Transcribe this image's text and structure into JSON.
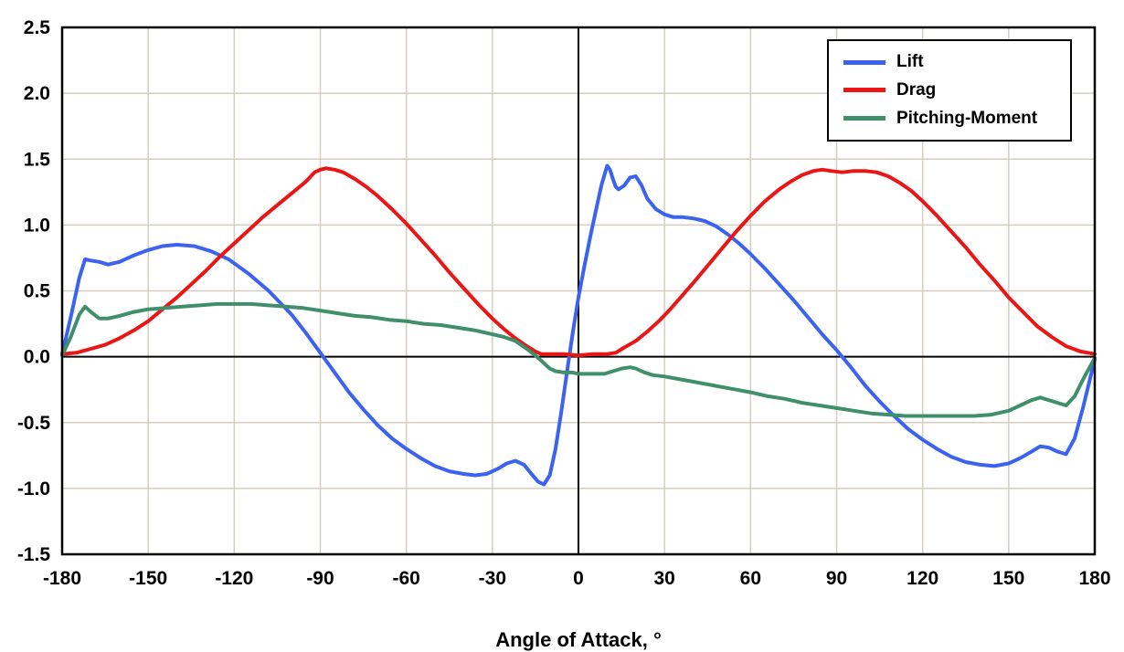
{
  "chart_data": {
    "type": "line",
    "title": "",
    "xlabel": "Angle of Attack, °",
    "ylabel": "",
    "xlim": [
      -180,
      180
    ],
    "ylim": [
      -1.5,
      2.5
    ],
    "xtick_step": 30,
    "ytick_step": 0.5,
    "grid": true,
    "legend_position": "top-right",
    "x_tick_labels": [
      "-180",
      "-150",
      "-120",
      "-90",
      "-60",
      "-30",
      "0",
      "30",
      "60",
      "90",
      "120",
      "150",
      "180"
    ],
    "y_tick_labels": [
      "-1.5",
      "-1.0",
      "-0.5",
      "0.0",
      "0.5",
      "1.0",
      "1.5",
      "2.0",
      "2.5"
    ],
    "colors": {
      "grid": "#d4cec2",
      "axis": "#000000",
      "zero_lines": "#000000",
      "background": "#ffffff"
    },
    "series": [
      {
        "name": "Lift",
        "color": "#3c63f0",
        "points": [
          [
            -180,
            0.02
          ],
          [
            -177,
            0.3
          ],
          [
            -174,
            0.6
          ],
          [
            -172,
            0.74
          ],
          [
            -170,
            0.73
          ],
          [
            -167,
            0.72
          ],
          [
            -164,
            0.7
          ],
          [
            -160,
            0.72
          ],
          [
            -155,
            0.77
          ],
          [
            -150,
            0.81
          ],
          [
            -145,
            0.84
          ],
          [
            -140,
            0.85
          ],
          [
            -134,
            0.84
          ],
          [
            -128,
            0.8
          ],
          [
            -122,
            0.74
          ],
          [
            -115,
            0.63
          ],
          [
            -108,
            0.5
          ],
          [
            -100,
            0.32
          ],
          [
            -95,
            0.18
          ],
          [
            -90,
            0.03
          ],
          [
            -85,
            -0.12
          ],
          [
            -80,
            -0.27
          ],
          [
            -75,
            -0.4
          ],
          [
            -70,
            -0.52
          ],
          [
            -65,
            -0.62
          ],
          [
            -60,
            -0.7
          ],
          [
            -55,
            -0.77
          ],
          [
            -50,
            -0.83
          ],
          [
            -45,
            -0.87
          ],
          [
            -40,
            -0.89
          ],
          [
            -36,
            -0.9
          ],
          [
            -32,
            -0.89
          ],
          [
            -28,
            -0.85
          ],
          [
            -25,
            -0.81
          ],
          [
            -22,
            -0.79
          ],
          [
            -19,
            -0.82
          ],
          [
            -16,
            -0.9
          ],
          [
            -14,
            -0.95
          ],
          [
            -12,
            -0.97
          ],
          [
            -10,
            -0.9
          ],
          [
            -8,
            -0.7
          ],
          [
            -6,
            -0.42
          ],
          [
            -4,
            -0.12
          ],
          [
            -2,
            0.18
          ],
          [
            0,
            0.45
          ],
          [
            2,
            0.68
          ],
          [
            4,
            0.9
          ],
          [
            6,
            1.1
          ],
          [
            8,
            1.3
          ],
          [
            10,
            1.45
          ],
          [
            11,
            1.42
          ],
          [
            12,
            1.35
          ],
          [
            13,
            1.29
          ],
          [
            14,
            1.27
          ],
          [
            16,
            1.3
          ],
          [
            18,
            1.36
          ],
          [
            20,
            1.37
          ],
          [
            22,
            1.3
          ],
          [
            24,
            1.2
          ],
          [
            27,
            1.12
          ],
          [
            30,
            1.08
          ],
          [
            33,
            1.06
          ],
          [
            36,
            1.06
          ],
          [
            40,
            1.05
          ],
          [
            44,
            1.03
          ],
          [
            48,
            0.99
          ],
          [
            52,
            0.93
          ],
          [
            56,
            0.86
          ],
          [
            60,
            0.78
          ],
          [
            65,
            0.67
          ],
          [
            70,
            0.55
          ],
          [
            75,
            0.43
          ],
          [
            80,
            0.3
          ],
          [
            85,
            0.17
          ],
          [
            90,
            0.05
          ],
          [
            95,
            -0.08
          ],
          [
            100,
            -0.22
          ],
          [
            105,
            -0.34
          ],
          [
            110,
            -0.45
          ],
          [
            115,
            -0.55
          ],
          [
            120,
            -0.63
          ],
          [
            125,
            -0.7
          ],
          [
            130,
            -0.76
          ],
          [
            135,
            -0.8
          ],
          [
            140,
            -0.82
          ],
          [
            145,
            -0.83
          ],
          [
            150,
            -0.81
          ],
          [
            154,
            -0.77
          ],
          [
            158,
            -0.72
          ],
          [
            161,
            -0.68
          ],
          [
            164,
            -0.69
          ],
          [
            167,
            -0.72
          ],
          [
            170,
            -0.74
          ],
          [
            173,
            -0.62
          ],
          [
            176,
            -0.38
          ],
          [
            178,
            -0.2
          ],
          [
            180,
            -0.02
          ]
        ]
      },
      {
        "name": "Drag",
        "color": "#ea1515",
        "points": [
          [
            -180,
            0.02
          ],
          [
            -175,
            0.03
          ],
          [
            -170,
            0.06
          ],
          [
            -165,
            0.09
          ],
          [
            -160,
            0.14
          ],
          [
            -155,
            0.2
          ],
          [
            -150,
            0.27
          ],
          [
            -145,
            0.36
          ],
          [
            -140,
            0.45
          ],
          [
            -135,
            0.55
          ],
          [
            -130,
            0.65
          ],
          [
            -125,
            0.76
          ],
          [
            -120,
            0.86
          ],
          [
            -115,
            0.96
          ],
          [
            -110,
            1.06
          ],
          [
            -105,
            1.15
          ],
          [
            -100,
            1.24
          ],
          [
            -95,
            1.33
          ],
          [
            -92,
            1.4
          ],
          [
            -90,
            1.42
          ],
          [
            -88,
            1.43
          ],
          [
            -85,
            1.42
          ],
          [
            -82,
            1.4
          ],
          [
            -78,
            1.35
          ],
          [
            -74,
            1.29
          ],
          [
            -70,
            1.22
          ],
          [
            -65,
            1.12
          ],
          [
            -60,
            1.01
          ],
          [
            -55,
            0.89
          ],
          [
            -50,
            0.77
          ],
          [
            -45,
            0.64
          ],
          [
            -40,
            0.52
          ],
          [
            -35,
            0.4
          ],
          [
            -30,
            0.29
          ],
          [
            -26,
            0.21
          ],
          [
            -22,
            0.14
          ],
          [
            -18,
            0.08
          ],
          [
            -15,
            0.04
          ],
          [
            -13,
            0.02
          ],
          [
            -10,
            0.02
          ],
          [
            -5,
            0.02
          ],
          [
            0,
            0.01
          ],
          [
            5,
            0.02
          ],
          [
            10,
            0.02
          ],
          [
            13,
            0.03
          ],
          [
            16,
            0.07
          ],
          [
            20,
            0.12
          ],
          [
            24,
            0.19
          ],
          [
            28,
            0.27
          ],
          [
            32,
            0.36
          ],
          [
            36,
            0.46
          ],
          [
            40,
            0.56
          ],
          [
            45,
            0.69
          ],
          [
            50,
            0.82
          ],
          [
            55,
            0.95
          ],
          [
            60,
            1.07
          ],
          [
            65,
            1.18
          ],
          [
            70,
            1.27
          ],
          [
            74,
            1.33
          ],
          [
            78,
            1.38
          ],
          [
            82,
            1.41
          ],
          [
            85,
            1.42
          ],
          [
            88,
            1.41
          ],
          [
            92,
            1.4
          ],
          [
            96,
            1.41
          ],
          [
            100,
            1.41
          ],
          [
            104,
            1.4
          ],
          [
            108,
            1.37
          ],
          [
            112,
            1.32
          ],
          [
            116,
            1.26
          ],
          [
            120,
            1.18
          ],
          [
            125,
            1.07
          ],
          [
            130,
            0.95
          ],
          [
            135,
            0.83
          ],
          [
            140,
            0.7
          ],
          [
            145,
            0.58
          ],
          [
            150,
            0.45
          ],
          [
            155,
            0.34
          ],
          [
            160,
            0.23
          ],
          [
            165,
            0.15
          ],
          [
            170,
            0.08
          ],
          [
            175,
            0.04
          ],
          [
            180,
            0.02
          ]
        ]
      },
      {
        "name": "Pitching-Moment",
        "color": "#3f8f6b",
        "points": [
          [
            -180,
            0.01
          ],
          [
            -177,
            0.15
          ],
          [
            -174,
            0.32
          ],
          [
            -172,
            0.38
          ],
          [
            -170,
            0.34
          ],
          [
            -167,
            0.29
          ],
          [
            -164,
            0.29
          ],
          [
            -160,
            0.31
          ],
          [
            -155,
            0.34
          ],
          [
            -150,
            0.36
          ],
          [
            -144,
            0.37
          ],
          [
            -138,
            0.38
          ],
          [
            -132,
            0.39
          ],
          [
            -126,
            0.4
          ],
          [
            -120,
            0.4
          ],
          [
            -114,
            0.4
          ],
          [
            -108,
            0.39
          ],
          [
            -102,
            0.38
          ],
          [
            -96,
            0.37
          ],
          [
            -90,
            0.35
          ],
          [
            -84,
            0.33
          ],
          [
            -78,
            0.31
          ],
          [
            -72,
            0.3
          ],
          [
            -66,
            0.28
          ],
          [
            -60,
            0.27
          ],
          [
            -54,
            0.25
          ],
          [
            -48,
            0.24
          ],
          [
            -42,
            0.22
          ],
          [
            -36,
            0.2
          ],
          [
            -30,
            0.17
          ],
          [
            -26,
            0.15
          ],
          [
            -22,
            0.12
          ],
          [
            -18,
            0.06
          ],
          [
            -15,
            0.01
          ],
          [
            -12,
            -0.05
          ],
          [
            -10,
            -0.09
          ],
          [
            -8,
            -0.11
          ],
          [
            -5,
            -0.12
          ],
          [
            -2,
            -0.12
          ],
          [
            0,
            -0.13
          ],
          [
            3,
            -0.13
          ],
          [
            6,
            -0.13
          ],
          [
            9,
            -0.13
          ],
          [
            12,
            -0.11
          ],
          [
            15,
            -0.09
          ],
          [
            18,
            -0.08
          ],
          [
            20,
            -0.09
          ],
          [
            23,
            -0.12
          ],
          [
            26,
            -0.14
          ],
          [
            30,
            -0.15
          ],
          [
            35,
            -0.17
          ],
          [
            40,
            -0.19
          ],
          [
            45,
            -0.21
          ],
          [
            50,
            -0.23
          ],
          [
            55,
            -0.25
          ],
          [
            60,
            -0.27
          ],
          [
            66,
            -0.3
          ],
          [
            72,
            -0.32
          ],
          [
            78,
            -0.35
          ],
          [
            84,
            -0.37
          ],
          [
            90,
            -0.39
          ],
          [
            96,
            -0.41
          ],
          [
            102,
            -0.43
          ],
          [
            108,
            -0.44
          ],
          [
            114,
            -0.45
          ],
          [
            120,
            -0.45
          ],
          [
            126,
            -0.45
          ],
          [
            132,
            -0.45
          ],
          [
            138,
            -0.45
          ],
          [
            144,
            -0.44
          ],
          [
            150,
            -0.41
          ],
          [
            154,
            -0.37
          ],
          [
            158,
            -0.33
          ],
          [
            161,
            -0.31
          ],
          [
            164,
            -0.33
          ],
          [
            167,
            -0.35
          ],
          [
            170,
            -0.37
          ],
          [
            173,
            -0.3
          ],
          [
            176,
            -0.17
          ],
          [
            180,
            -0.01
          ]
        ]
      }
    ]
  }
}
